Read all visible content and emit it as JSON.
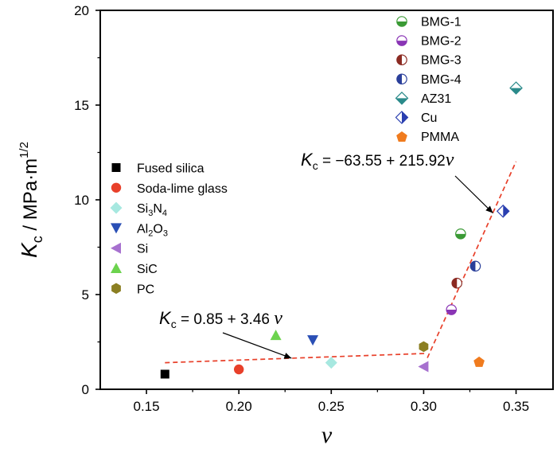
{
  "chart_data": {
    "type": "scatter",
    "xlabel": "ν",
    "ylabel": "K_c / MPa·m^1/2",
    "xlim": [
      0.125,
      0.37
    ],
    "ylim": [
      0,
      20
    ],
    "xticks": [
      "0.15",
      "0.20",
      "0.25",
      "0.30",
      "0.35"
    ],
    "yticks": [
      "0",
      "5",
      "10",
      "15",
      "20"
    ],
    "grid": false,
    "series": [
      {
        "name": "Fused silica",
        "marker": "square",
        "fill": "full",
        "color": "#000000",
        "x": 0.16,
        "y": 0.8
      },
      {
        "name": "Soda-lime glass",
        "marker": "circle",
        "fill": "full",
        "color": "#e8402a",
        "x": 0.2,
        "y": 1.05
      },
      {
        "name": "Si3N4",
        "marker": "diamond",
        "fill": "full",
        "color": "#a7e8e0",
        "x": 0.25,
        "y": 1.4
      },
      {
        "name": "Al2O3",
        "marker": "triangle-down",
        "fill": "full",
        "color": "#2a4fb5",
        "x": 0.24,
        "y": 2.6
      },
      {
        "name": "Si",
        "marker": "triangle-left",
        "fill": "full",
        "color": "#a771cf",
        "x": 0.3,
        "y": 1.2
      },
      {
        "name": "SiC",
        "marker": "triangle-up",
        "fill": "full",
        "color": "#6cd34e",
        "x": 0.22,
        "y": 2.85
      },
      {
        "name": "PC",
        "marker": "hexagon",
        "fill": "full",
        "color": "#8b7f22",
        "x": 0.3,
        "y": 2.25
      },
      {
        "name": "BMG-1",
        "marker": "circle",
        "fill": "half-bottom",
        "color": "#3a9a35",
        "x": 0.32,
        "y": 8.2
      },
      {
        "name": "BMG-2",
        "marker": "circle",
        "fill": "half-bottom",
        "color": "#8a35b5",
        "x": 0.315,
        "y": 4.2
      },
      {
        "name": "BMG-3",
        "marker": "circle",
        "fill": "half-left",
        "color": "#8b2a22",
        "x": 0.318,
        "y": 5.6
      },
      {
        "name": "BMG-4",
        "marker": "circle",
        "fill": "half-left",
        "color": "#2a3f9a",
        "x": 0.328,
        "y": 6.5
      },
      {
        "name": "AZ31",
        "marker": "diamond",
        "fill": "half-bottom",
        "color": "#2a8a8a",
        "x": 0.35,
        "y": 15.9
      },
      {
        "name": "Cu",
        "marker": "diamond",
        "fill": "half-right",
        "color": "#2a3fb0",
        "x": 0.343,
        "y": 9.4
      },
      {
        "name": "PMMA",
        "marker": "pentagon",
        "fill": "full",
        "color": "#f07b1e",
        "x": 0.33,
        "y": 1.45
      }
    ],
    "legend_left": [
      "Fused silica",
      "Soda-lime glass",
      "Si3N4",
      "Al2O3",
      "Si",
      "SiC",
      "PC"
    ],
    "legend_right": [
      "BMG-1",
      "BMG-2",
      "BMG-3",
      "BMG-4",
      "AZ31",
      "Cu",
      "PMMA"
    ],
    "legend_labels": {
      "Si3N4": [
        "Si",
        "3",
        "N",
        "4"
      ],
      "Al2O3": [
        "Al",
        "2",
        "O",
        "3"
      ]
    },
    "fits": [
      {
        "color": "#e8402a",
        "style": "dashed",
        "x": [
          0.16,
          0.302
        ],
        "intercept": 0.85,
        "slope": 3.46
      },
      {
        "color": "#e8402a",
        "style": "dashed",
        "x": [
          0.302,
          0.35
        ],
        "intercept": -63.55,
        "slope": 215.92
      }
    ],
    "annotations": [
      {
        "text": "K_c = 0.85 + 3.46 ν",
        "parts": [
          "K",
          "c",
          " = 0.85 + 3.46 ",
          "ν"
        ],
        "x": 0.1873,
        "y": 3.35,
        "arrow_to": [
          0.2285,
          1.64
        ]
      },
      {
        "text": "K_c = −63.55 + 215.92 ν",
        "parts": [
          "K",
          "c",
          " = −63.55 + 215.92",
          "ν"
        ],
        "x": 0.2895,
        "y": 11.85,
        "arrow_to": [
          0.3375,
          9.3
        ]
      }
    ],
    "ylabel_parts": [
      "K",
      "c",
      " / MPa·m",
      "1/2"
    ]
  }
}
